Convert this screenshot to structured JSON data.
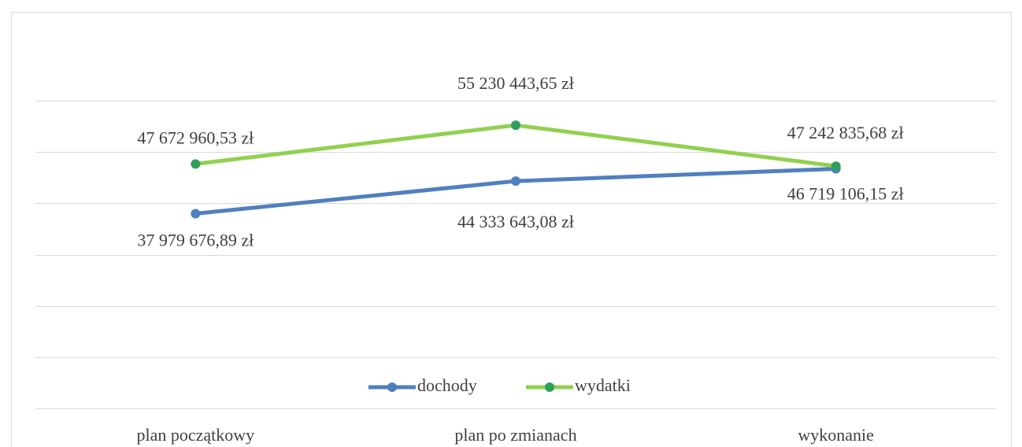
{
  "chart_data": {
    "type": "line",
    "categories": [
      "plan początkowy",
      "plan po zmianach",
      "wykonanie"
    ],
    "series": [
      {
        "name": "dochody",
        "color": "#4f7fbf",
        "marker_color": "#4f7fbf",
        "values": [
          37979676.89,
          44333643.08,
          46719106.15
        ],
        "value_labels": [
          "37 979 676,89 zł",
          "44 333 643,08 zł",
          "46 719 106,15 zł"
        ]
      },
      {
        "name": "wydatki",
        "color": "#92d050",
        "marker_color": "#2e9e5b",
        "values": [
          47672960.53,
          55230443.65,
          47242835.68
        ],
        "value_labels": [
          "47 672 960,53 zł",
          "55 230 443,65 zł",
          "47 242 835,68 zł"
        ]
      }
    ],
    "ylim": [
      0,
      60000000
    ],
    "yticks": [
      0,
      10000000,
      20000000,
      30000000,
      40000000,
      50000000,
      60000000
    ],
    "grid": true,
    "legend": "bottom"
  }
}
